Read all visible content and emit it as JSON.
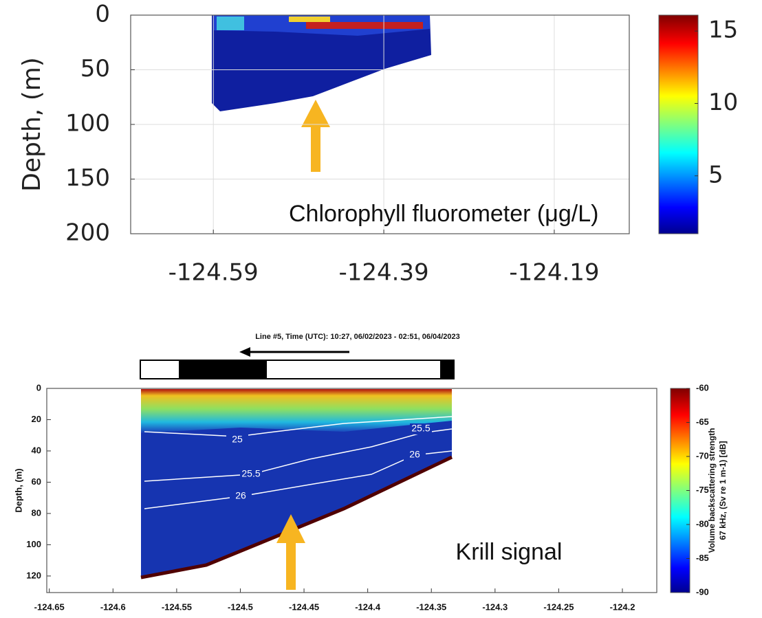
{
  "chart_data": [
    {
      "type": "heatmap",
      "ylabel": "Depth, (m)",
      "xlim": [
        -124.687,
        -124.102
      ],
      "xticks": [
        -124.59,
        -124.39,
        -124.19
      ],
      "ylim": [
        0,
        200
      ],
      "yticks": [
        0,
        50,
        100,
        150,
        200
      ],
      "y_inverted": true,
      "grid": true,
      "colorbar": {
        "label": "Chlorophyll fluorometer (μg/L)",
        "lim": [
          1,
          16.1
        ],
        "ticks": [
          5,
          10,
          15
        ],
        "colormap": "jet"
      }
    },
    {
      "type": "heatmap",
      "title": "Line #5, Time (UTC):   10:27, 06/02/2023 - 02:51, 06/04/2023",
      "ylabel": "Depth, (m)",
      "xlim": [
        -124.652,
        -124.173
      ],
      "xticks": [
        -124.65,
        -124.6,
        -124.55,
        -124.5,
        -124.45,
        -124.4,
        -124.35,
        -124.3,
        -124.25,
        -124.2
      ],
      "ylim": [
        0,
        130.6
      ],
      "yticks": [
        0,
        20,
        40,
        60,
        80,
        100,
        120
      ],
      "y_inverted": true,
      "grid": false,
      "contours": [
        {
          "value": 25
        },
        {
          "value": 25.5
        },
        {
          "value": 26
        }
      ],
      "annotation": "Krill signal",
      "colorbar": {
        "label": [
          "Volume backscattering strength",
          "67 kHz, (Sv re 1 m-1) [dB]"
        ],
        "lim": [
          -90,
          -60
        ],
        "ticks": [
          -90,
          -85,
          -80,
          -75,
          -70,
          -65,
          -60
        ],
        "colormap": "jet"
      }
    }
  ]
}
